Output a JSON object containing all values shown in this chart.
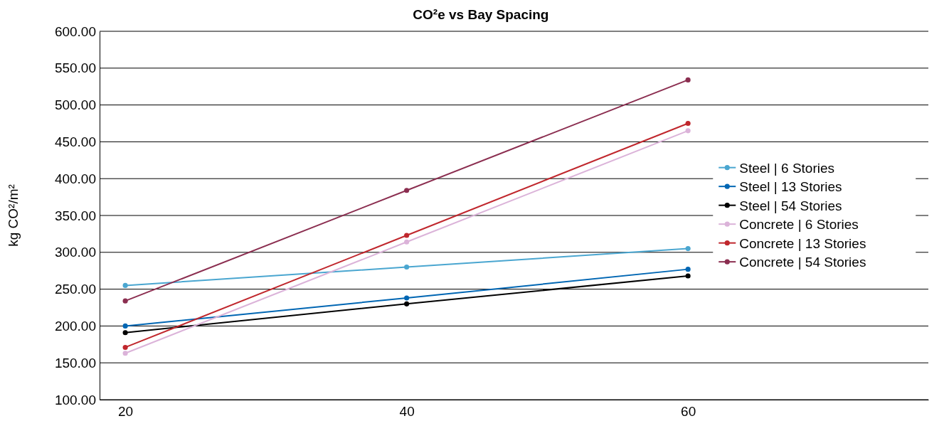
{
  "chart_data": {
    "type": "line",
    "title": "CO²e vs Bay Spacing",
    "ylabel": "kg CO²/m²",
    "categories": [
      "20",
      "40",
      "60"
    ],
    "ylim": [
      100,
      600
    ],
    "yticks": [
      {
        "value": 100,
        "label": "100.00"
      },
      {
        "value": 150,
        "label": "150.00"
      },
      {
        "value": 200,
        "label": "200.00"
      },
      {
        "value": 250,
        "label": "250.00"
      },
      {
        "value": 300,
        "label": "300.00"
      },
      {
        "value": 350,
        "label": "350.00"
      },
      {
        "value": 400,
        "label": "400.00"
      },
      {
        "value": 450,
        "label": "450.00"
      },
      {
        "value": 500,
        "label": "500.00"
      },
      {
        "value": 550,
        "label": "550.00"
      },
      {
        "value": 600,
        "label": "600.00"
      }
    ],
    "grid": "y",
    "legend": "right",
    "marker": "circle",
    "line_style": "solid",
    "series": [
      {
        "name": "Steel | 6 Stories",
        "color": "#4aa6d0",
        "values": [
          255,
          280,
          305
        ]
      },
      {
        "name": "Steel | 13 Stories",
        "color": "#0066b3",
        "values": [
          200,
          238,
          277
        ]
      },
      {
        "name": "Steel | 54 Stories",
        "color": "#000000",
        "values": [
          191,
          230,
          268
        ]
      },
      {
        "name": "Concrete | 6 Stories",
        "color": "#dbb3d9",
        "values": [
          163,
          314,
          465
        ]
      },
      {
        "name": "Concrete | 13 Stories",
        "color": "#c0272d",
        "values": [
          171,
          323,
          475
        ]
      },
      {
        "name": "Concrete | 54 Stories",
        "color": "#8b2e50",
        "values": [
          234,
          384,
          534
        ]
      }
    ]
  }
}
